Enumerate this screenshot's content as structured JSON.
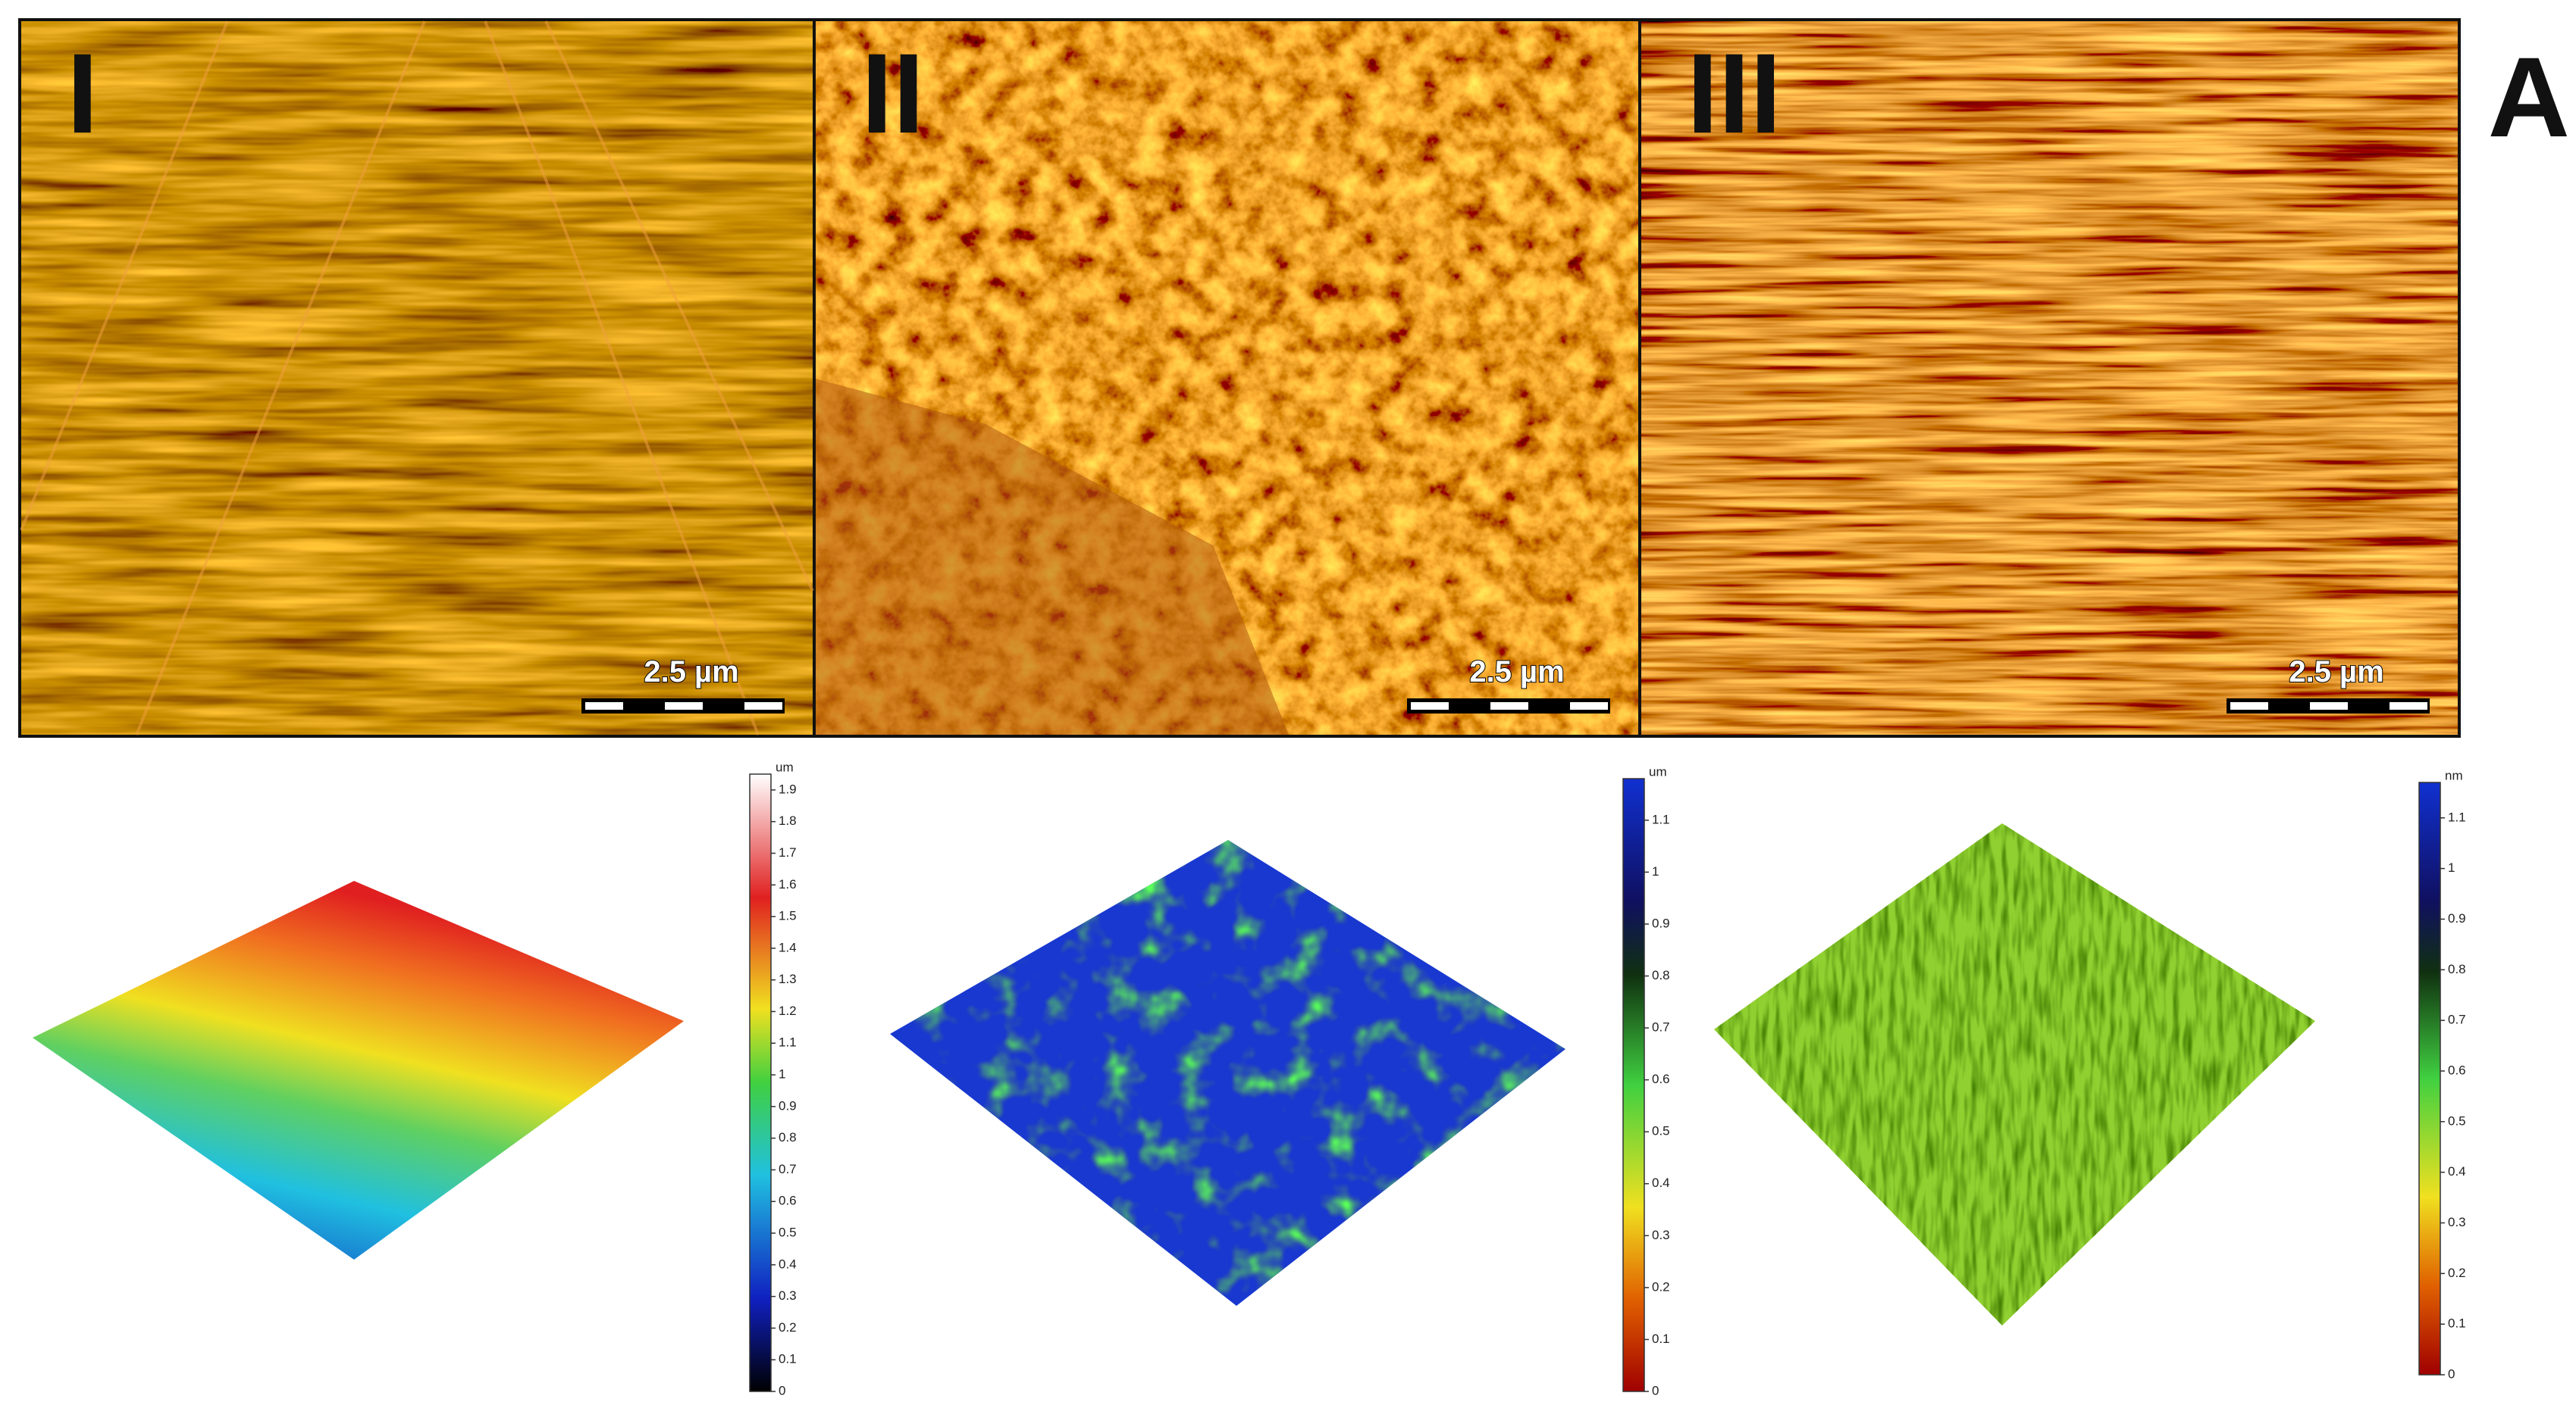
{
  "figure_label": "A",
  "panels": [
    {
      "label": "I",
      "scale_bar": "2.5 µm",
      "colorbar": {
        "unit": "um",
        "lim": [
          0,
          1.95
        ],
        "ticks": [
          0,
          0.1,
          0.2,
          0.3,
          0.4,
          0.5,
          0.6,
          0.7,
          0.8,
          0.9,
          1,
          1.1,
          1.2,
          1.3,
          1.4,
          1.5,
          1.6,
          1.7,
          1.8,
          1.9
        ]
      }
    },
    {
      "label": "II",
      "scale_bar": "2.5 µm",
      "colorbar": {
        "unit": "um",
        "lim": [
          0,
          1.18
        ],
        "ticks": [
          0,
          0.1,
          0.2,
          0.3,
          0.4,
          0.5,
          0.6,
          0.7,
          0.8,
          0.9,
          1,
          1.1
        ]
      }
    },
    {
      "label": "III",
      "scale_bar": "2.5 µm",
      "colorbar": {
        "unit": "nm",
        "lim": [
          0,
          1.17
        ],
        "ticks": [
          0,
          0.1,
          0.2,
          0.3,
          0.4,
          0.5,
          0.6,
          0.7,
          0.8,
          0.9,
          1,
          1.1
        ]
      }
    }
  ]
}
